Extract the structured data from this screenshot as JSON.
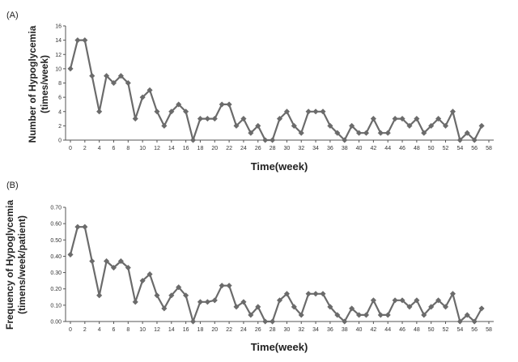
{
  "chart_data": [
    {
      "panel_label": "(A)",
      "type": "line",
      "xlabel": "Time(week)",
      "ylabel_line1": "Number of Hypoglycemia",
      "ylabel_line2": "(times/week)",
      "xlim": [
        0,
        58
      ],
      "ylim": [
        0,
        16
      ],
      "xticks": [
        "0",
        "2",
        "4",
        "6",
        "8",
        "10",
        "12",
        "14",
        "16",
        "18",
        "20",
        "22",
        "24",
        "26",
        "28",
        "30",
        "32",
        "34",
        "36",
        "38",
        "40",
        "42",
        "44",
        "46",
        "48",
        "50",
        "52",
        "54",
        "56",
        "58"
      ],
      "yticks": [
        "0",
        "2",
        "4",
        "6",
        "8",
        "10",
        "12",
        "14",
        "16"
      ],
      "line_color": "#6b6b6b",
      "x": [
        0,
        1,
        2,
        3,
        4,
        5,
        6,
        7,
        8,
        9,
        10,
        11,
        12,
        13,
        14,
        15,
        16,
        17,
        18,
        19,
        20,
        21,
        22,
        23,
        24,
        25,
        26,
        27,
        28,
        29,
        30,
        31,
        32,
        33,
        34,
        35,
        36,
        37,
        38,
        39,
        40,
        41,
        42,
        43,
        44,
        45,
        46,
        47,
        48,
        49,
        50,
        51,
        52,
        53,
        54,
        55,
        56,
        57
      ],
      "values": [
        10,
        14,
        14,
        9,
        4,
        9,
        8,
        9,
        8,
        3,
        6,
        7,
        4,
        2,
        4,
        5,
        4,
        0,
        3,
        3,
        3,
        5,
        5,
        2,
        3,
        1,
        2,
        0,
        0,
        3,
        4,
        2,
        1,
        4,
        4,
        4,
        2,
        1,
        0,
        2,
        1,
        1,
        3,
        1,
        1,
        3,
        3,
        2,
        3,
        1,
        2,
        3,
        2,
        4,
        0,
        1,
        0,
        2
      ]
    },
    {
      "panel_label": "(B)",
      "type": "line",
      "xlabel": "Time(week)",
      "ylabel_line1": "Frequency of Hypoglycemia",
      "ylabel_line2": "(timens/week/patient)",
      "xlim": [
        0,
        58
      ],
      "ylim": [
        0,
        0.7
      ],
      "xticks": [
        "0",
        "2",
        "4",
        "6",
        "8",
        "10",
        "12",
        "14",
        "16",
        "18",
        "20",
        "22",
        "24",
        "26",
        "28",
        "30",
        "32",
        "34",
        "36",
        "38",
        "40",
        "42",
        "44",
        "46",
        "48",
        "50",
        "52",
        "54",
        "56",
        "58"
      ],
      "yticks": [
        "0.00",
        "0.10",
        "0.20",
        "0.30",
        "0.40",
        "0.50",
        "0.60",
        "0.70"
      ],
      "line_color": "#6b6b6b",
      "x": [
        0,
        1,
        2,
        3,
        4,
        5,
        6,
        7,
        8,
        9,
        10,
        11,
        12,
        13,
        14,
        15,
        16,
        17,
        18,
        19,
        20,
        21,
        22,
        23,
        24,
        25,
        26,
        27,
        28,
        29,
        30,
        31,
        32,
        33,
        34,
        35,
        36,
        37,
        38,
        39,
        40,
        41,
        42,
        43,
        44,
        45,
        46,
        47,
        48,
        49,
        50,
        51,
        52,
        53,
        54,
        55,
        56,
        57
      ],
      "values": [
        0.41,
        0.58,
        0.58,
        0.37,
        0.16,
        0.37,
        0.33,
        0.37,
        0.33,
        0.12,
        0.25,
        0.29,
        0.16,
        0.08,
        0.16,
        0.21,
        0.16,
        0.0,
        0.12,
        0.12,
        0.13,
        0.22,
        0.22,
        0.09,
        0.12,
        0.04,
        0.09,
        0.0,
        0.0,
        0.13,
        0.17,
        0.09,
        0.04,
        0.17,
        0.17,
        0.17,
        0.09,
        0.04,
        0.0,
        0.08,
        0.04,
        0.04,
        0.13,
        0.04,
        0.04,
        0.13,
        0.13,
        0.09,
        0.13,
        0.04,
        0.09,
        0.13,
        0.09,
        0.17,
        0.0,
        0.04,
        0.0,
        0.08
      ]
    }
  ]
}
